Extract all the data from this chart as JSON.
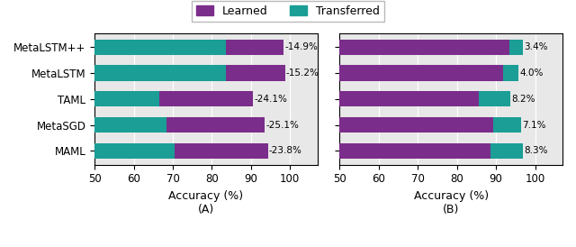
{
  "categories": [
    "MetaLSTM++",
    "MetaLSTM",
    "TAML",
    "MetaSGD",
    "MAML"
  ],
  "panel_A": {
    "transferred_end": [
      83.5,
      83.5,
      66.5,
      68.5,
      70.5
    ],
    "learned_width": [
      14.9,
      15.2,
      24.1,
      25.1,
      23.8
    ],
    "annotations": [
      "-14.9%",
      "-15.2%",
      "-24.1%",
      "-25.1%",
      "-23.8%"
    ]
  },
  "panel_B": {
    "learned_end": [
      93.4,
      91.8,
      85.5,
      89.2,
      88.5
    ],
    "transferred_width": [
      3.4,
      4.0,
      8.2,
      7.1,
      8.3
    ],
    "annotations": [
      "3.4%",
      "4.0%",
      "8.2%",
      "7.1%",
      "8.3%"
    ]
  },
  "xlim": [
    50,
    107
  ],
  "xticks": [
    50,
    60,
    70,
    80,
    90,
    100
  ],
  "xlabel": "Accuracy (%)",
  "color_learned": "#7B2D8B",
  "color_transferred": "#1A9E96",
  "background_color": "#e8e8e8",
  "bar_height": 0.6,
  "legend_learned": "Learned",
  "legend_transferred": "Transferred",
  "label_A": "(A)",
  "label_B": "(B)"
}
